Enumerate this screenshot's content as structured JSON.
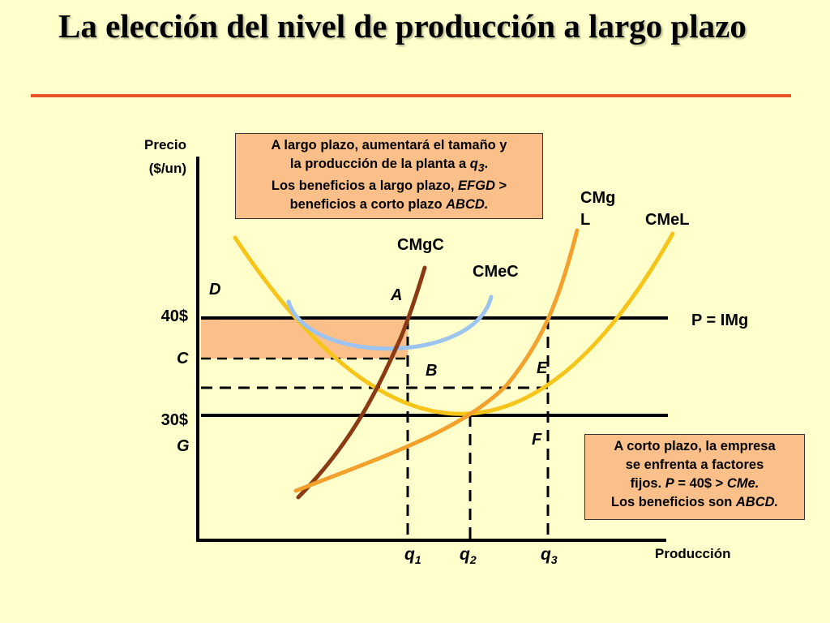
{
  "title": "La elección del nivel de producción a largo plazo",
  "axes": {
    "y_label_line1": "Precio",
    "y_label_line2": "($/un)",
    "x_label": "Producción",
    "y_tick_40": "40$",
    "y_tick_30": "30$"
  },
  "points": {
    "A": "A",
    "B": "B",
    "C": "C",
    "D": "D",
    "E": "E",
    "F": "F",
    "G": "G"
  },
  "quantities": {
    "q1_base": "q",
    "q1_sub": "1",
    "q2_base": "q",
    "q2_sub": "2",
    "q3_base": "q",
    "q3_sub": "3"
  },
  "curves": {
    "cmgc": "CMgC",
    "cmec": "CMeC",
    "cmgl_line1": "CMg",
    "cmgl_line2": "L",
    "cmel": "CMeL",
    "price_line": "P = IMg"
  },
  "callout_top": {
    "l1": "A largo plazo, aumentará el tamaño y",
    "l2a": "la producción de la planta a ",
    "l2q": "q",
    "l2sub": "3",
    "l2end": ".",
    "l3a": "Los beneficios a largo plazo, ",
    "l3em": "EFGD",
    "l3b": " >",
    "l4a": "beneficios a corto plazo ",
    "l4em": "ABCD.",
    "l4b": ""
  },
  "callout_bottom": {
    "l1": "A corto plazo, la empresa",
    "l2": "se enfrenta a factores",
    "l3a": "fijos. ",
    "l3em1": "P",
    "l3b": " = 40$ > ",
    "l3em2": "CMe.",
    "l4a": "Los beneficios son ",
    "l4em": "ABCD."
  },
  "colors": {
    "background": "#FFFFCC",
    "title_rule": "#E8532A",
    "cmgc": "#8B3A14",
    "cmec": "#9DC3F0",
    "cmgl": "#F3A02C",
    "cmel": "#F7C51A",
    "profit_area": "#FBC08A",
    "callout_fill": "#FBC08A"
  }
}
